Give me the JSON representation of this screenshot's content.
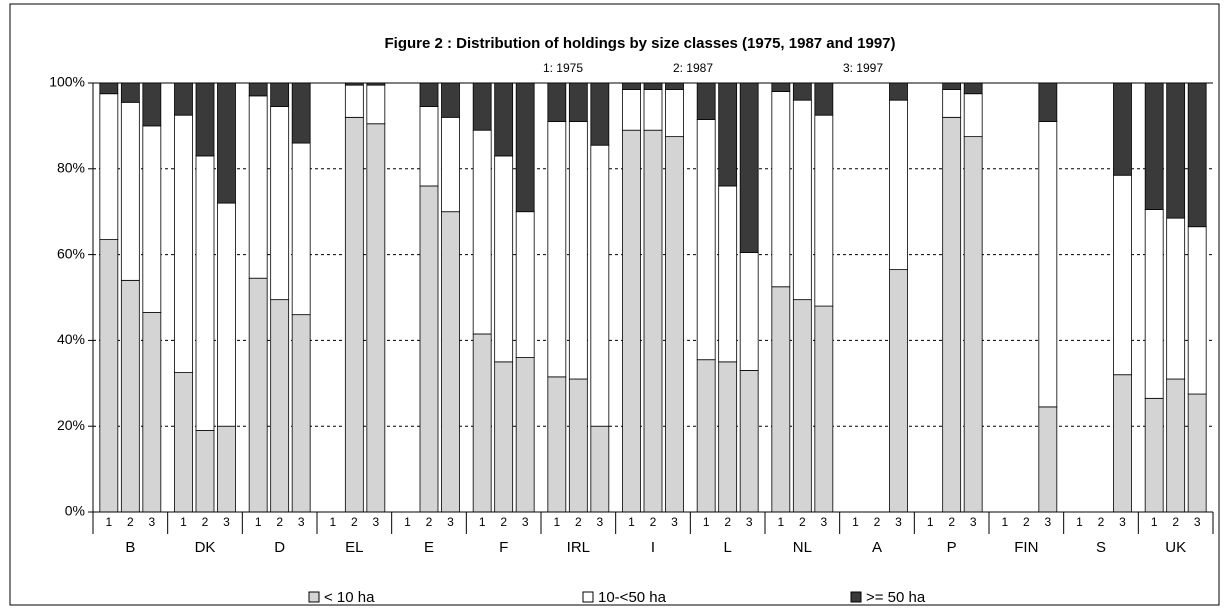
{
  "chart_data": {
    "type": "stacked_bar",
    "title": "Figure 2 : Distribution of holdings by size classes (1975, 1987 and 1997)",
    "annotations": [
      "1: 1975",
      "2: 1987",
      "3: 1997"
    ],
    "categories": [
      "B",
      "DK",
      "D",
      "EL",
      "E",
      "F",
      "IRL",
      "I",
      "L",
      "NL",
      "A",
      "P",
      "FIN",
      "S",
      "UK"
    ],
    "subcategories": [
      "1",
      "2",
      "3"
    ],
    "series": [
      {
        "name": "< 10 ha",
        "color": "#d4d4d4",
        "values": [
          [
            63.5,
            54,
            46.5
          ],
          [
            32.5,
            19,
            20
          ],
          [
            54.5,
            49.5,
            46
          ],
          [
            null,
            92,
            90.5
          ],
          [
            null,
            76,
            70
          ],
          [
            41.5,
            35,
            36
          ],
          [
            31.5,
            31,
            20
          ],
          [
            89,
            89,
            87.5
          ],
          [
            35.5,
            35,
            33
          ],
          [
            52.5,
            49.5,
            48
          ],
          [
            null,
            null,
            56.5
          ],
          [
            null,
            92,
            87.5
          ],
          [
            null,
            null,
            24.5
          ],
          [
            null,
            null,
            32
          ],
          [
            26.5,
            31,
            27.5
          ]
        ]
      },
      {
        "name": "10-<50 ha",
        "color": "#ffffff",
        "values": [
          [
            34,
            41.5,
            43.5
          ],
          [
            60,
            64,
            52
          ],
          [
            42.5,
            45,
            40
          ],
          [
            null,
            7.5,
            9
          ],
          [
            null,
            18.5,
            22
          ],
          [
            47.5,
            48,
            34
          ],
          [
            59.5,
            60,
            65.5
          ],
          [
            9.5,
            9.5,
            11
          ],
          [
            56,
            41,
            27.5
          ],
          [
            45.5,
            46.5,
            44.5
          ],
          [
            null,
            null,
            39.5
          ],
          [
            null,
            6.5,
            10
          ],
          [
            null,
            null,
            66.5
          ],
          [
            null,
            null,
            46.5
          ],
          [
            44,
            37.5,
            39
          ]
        ]
      },
      {
        "name": ">= 50 ha",
        "color": "#3a3a3a",
        "values": [
          [
            2.5,
            4.5,
            10
          ],
          [
            7.5,
            17,
            28
          ],
          [
            3,
            5.5,
            14
          ],
          [
            null,
            0.5,
            0.5
          ],
          [
            null,
            5.5,
            8
          ],
          [
            11,
            17,
            30
          ],
          [
            9,
            9,
            14.5
          ],
          [
            1.5,
            1.5,
            1.5
          ],
          [
            8.5,
            24,
            39.5
          ],
          [
            2,
            4,
            7.5
          ],
          [
            null,
            null,
            4
          ],
          [
            null,
            1.5,
            2.5
          ],
          [
            null,
            null,
            9
          ],
          [
            null,
            null,
            21.5
          ],
          [
            29.5,
            31.5,
            33.5
          ]
        ]
      }
    ],
    "ylim": [
      0,
      100
    ],
    "yticks": [
      {
        "value": 0,
        "label": "0%"
      },
      {
        "value": 20,
        "label": "20%"
      },
      {
        "value": 40,
        "label": "40%"
      },
      {
        "value": 60,
        "label": "60%"
      },
      {
        "value": 80,
        "label": "80%"
      },
      {
        "value": 100,
        "label": "100%"
      }
    ],
    "grid": true,
    "legend": "bottom"
  }
}
